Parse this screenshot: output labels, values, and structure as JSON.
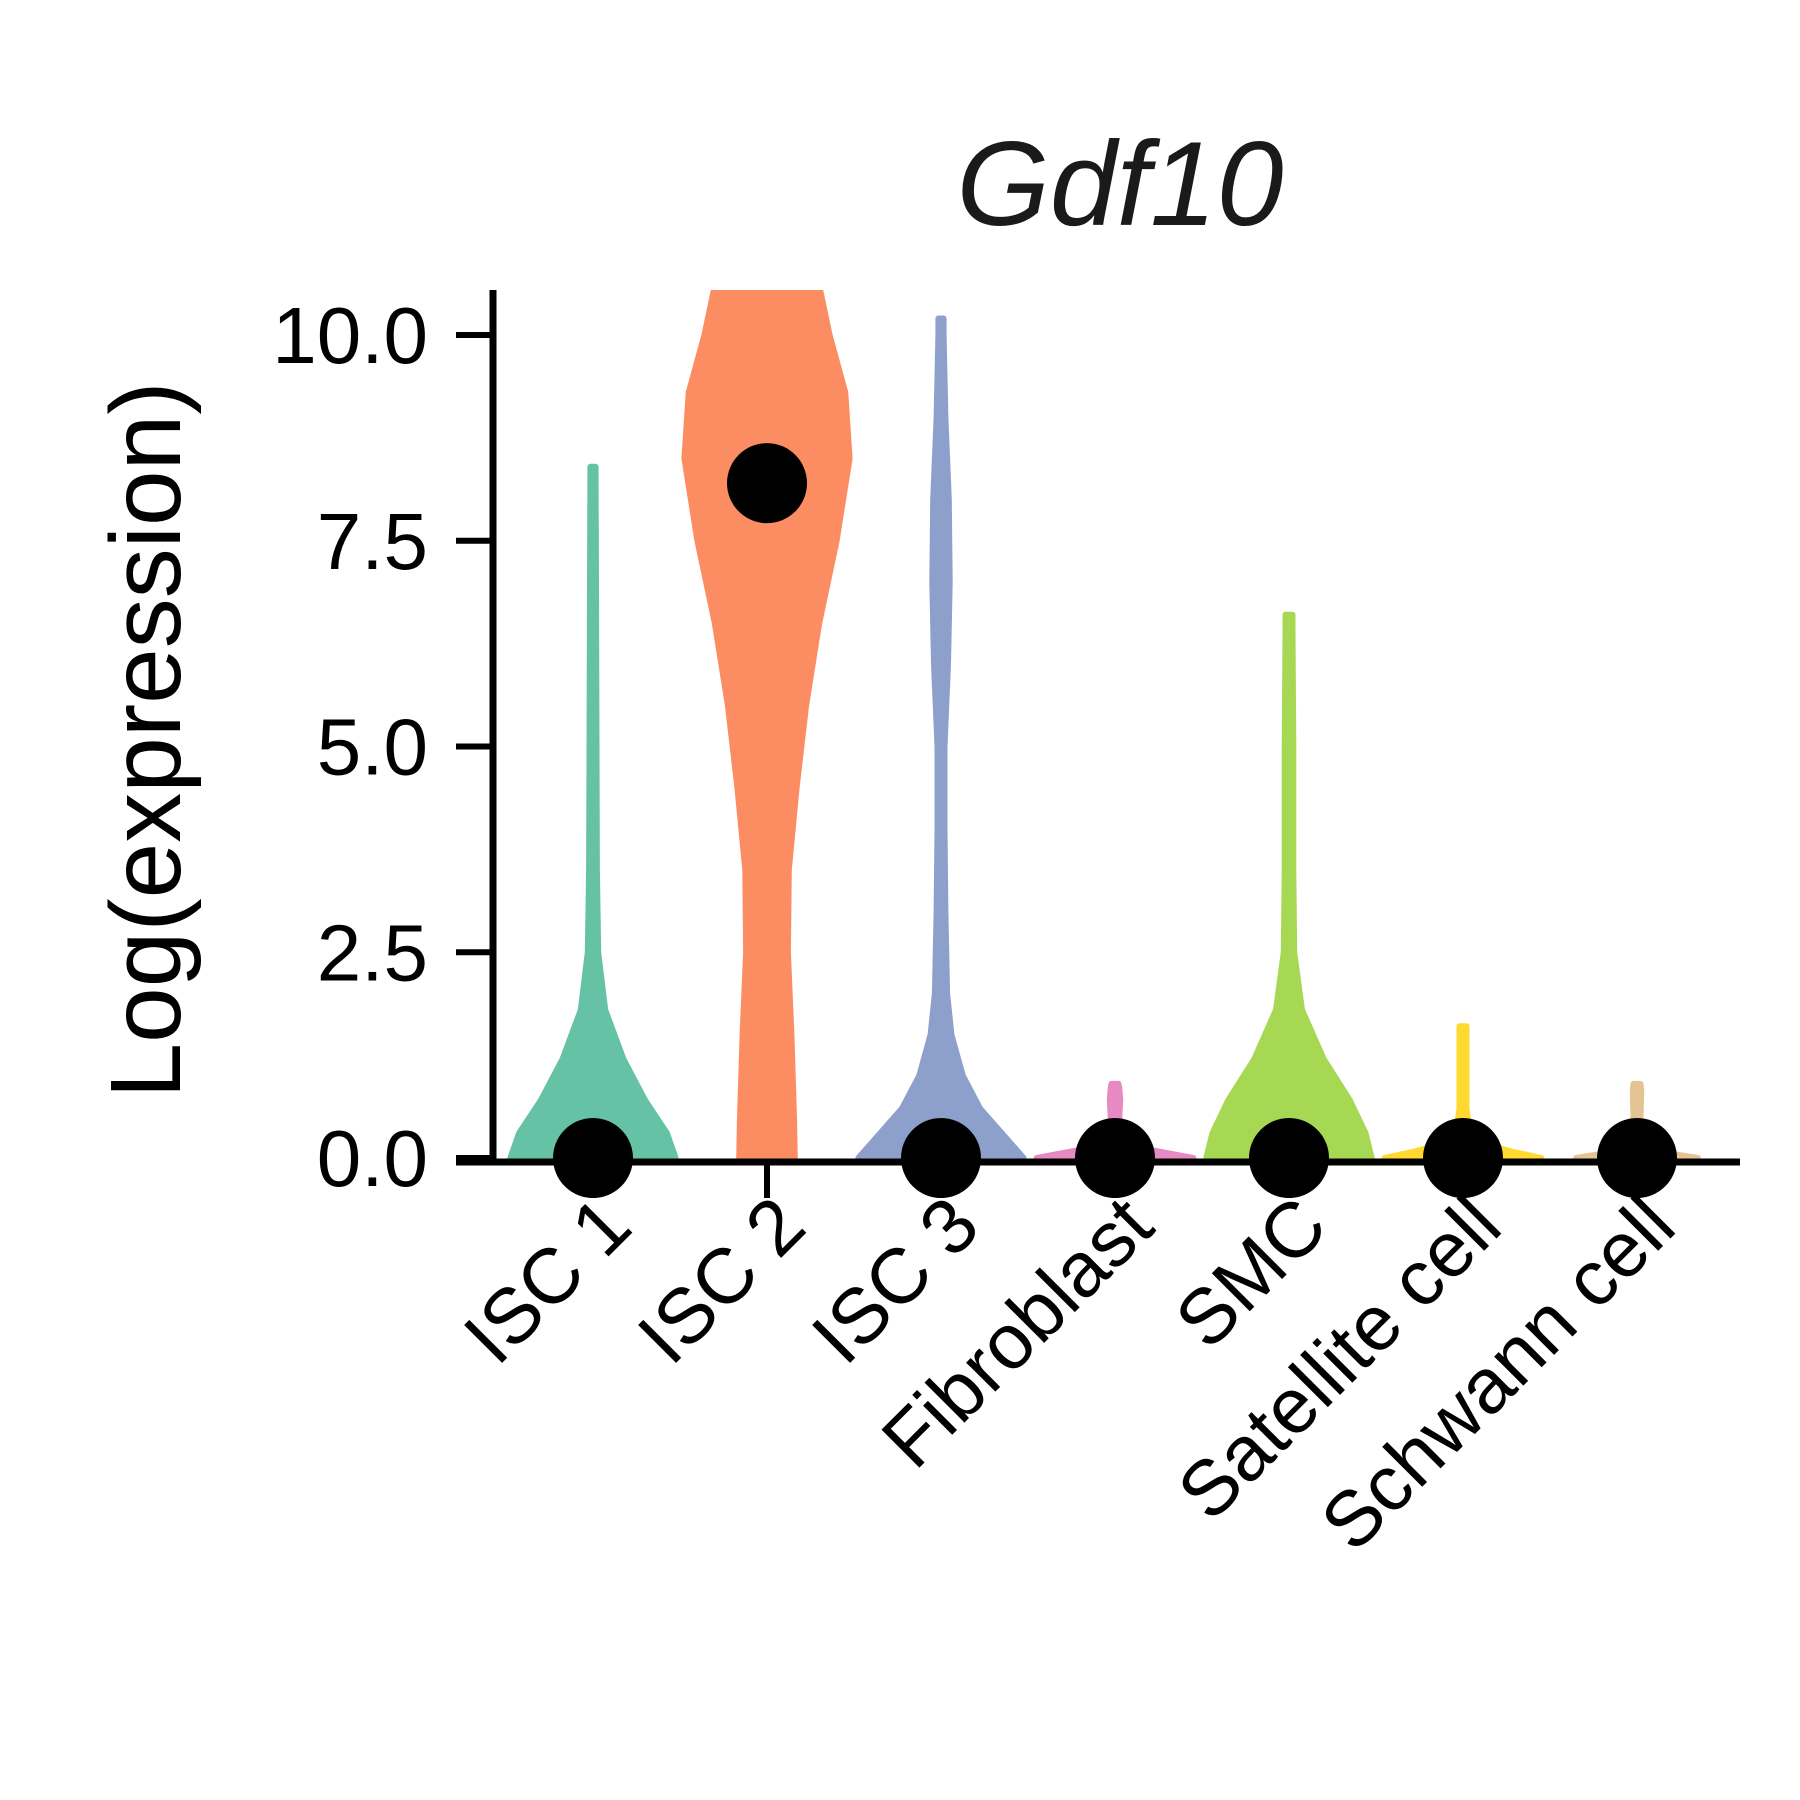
{
  "chart_data": {
    "type": "violin",
    "title": "Gdf10",
    "ylabel": "Log(expression)",
    "xlabel": "",
    "ylim": [
      0,
      10.6
    ],
    "yticks": [
      0.0,
      2.5,
      5.0,
      7.5,
      10.0
    ],
    "ytick_labels": [
      "0.0",
      "2.5",
      "5.0",
      "7.5",
      "10.0"
    ],
    "legend": "none",
    "grid": false,
    "categories": [
      "ISC 1",
      "ISC 2",
      "ISC 3",
      "Fibroblast",
      "SMC",
      "Satellite cell",
      "Schwann cell"
    ],
    "colors": [
      "#66C2A5",
      "#FC8D62",
      "#8DA0CB",
      "#E78AC3",
      "#A6D854",
      "#FFD92F",
      "#E5C494"
    ],
    "medians": [
      0.0,
      8.2,
      0.0,
      0.0,
      0.0,
      0.0,
      0.0
    ],
    "max_values": [
      8.4,
      10.6,
      10.2,
      0.9,
      6.6,
      1.6,
      0.9
    ],
    "violins": [
      {
        "name": "ISC 1",
        "profile": [
          [
            0,
            0.95
          ],
          [
            0.3,
            0.85
          ],
          [
            0.7,
            0.6
          ],
          [
            1.2,
            0.35
          ],
          [
            1.8,
            0.14
          ],
          [
            2.5,
            0.06
          ],
          [
            3.5,
            0.045
          ],
          [
            5,
            0.04
          ],
          [
            7,
            0.035
          ],
          [
            8.3,
            0.03
          ],
          [
            8.4,
            0.03
          ]
        ]
      },
      {
        "name": "ISC 2",
        "profile": [
          [
            0,
            0.32
          ],
          [
            0.5,
            0.31
          ],
          [
            1.5,
            0.28
          ],
          [
            2.5,
            0.24
          ],
          [
            3.5,
            0.25
          ],
          [
            4.5,
            0.34
          ],
          [
            5.5,
            0.45
          ],
          [
            6.5,
            0.6
          ],
          [
            7.5,
            0.8
          ],
          [
            8.5,
            0.95
          ],
          [
            9.3,
            0.9
          ],
          [
            10.0,
            0.72
          ],
          [
            10.6,
            0.6
          ]
        ]
      },
      {
        "name": "ISC 3",
        "profile": [
          [
            0,
            0.95
          ],
          [
            0.3,
            0.7
          ],
          [
            0.6,
            0.45
          ],
          [
            1.0,
            0.25
          ],
          [
            1.5,
            0.12
          ],
          [
            2.0,
            0.07
          ],
          [
            3,
            0.05
          ],
          [
            4,
            0.04
          ],
          [
            5,
            0.04
          ],
          [
            6,
            0.08
          ],
          [
            7,
            0.1
          ],
          [
            8,
            0.09
          ],
          [
            9,
            0.05
          ],
          [
            10,
            0.03
          ],
          [
            10.2,
            0.03
          ]
        ]
      },
      {
        "name": "Fibroblast",
        "profile": [
          [
            0,
            0.9
          ],
          [
            0.08,
            0.5
          ],
          [
            0.15,
            0.15
          ],
          [
            0.3,
            0.05
          ],
          [
            0.5,
            0.05
          ],
          [
            0.7,
            0.06
          ],
          [
            0.85,
            0.05
          ],
          [
            0.9,
            0.04
          ]
        ]
      },
      {
        "name": "SMC",
        "profile": [
          [
            0,
            0.95
          ],
          [
            0.3,
            0.88
          ],
          [
            0.7,
            0.7
          ],
          [
            1.2,
            0.4
          ],
          [
            1.8,
            0.15
          ],
          [
            2.5,
            0.06
          ],
          [
            3.5,
            0.05
          ],
          [
            5,
            0.05
          ],
          [
            6.4,
            0.04
          ],
          [
            6.6,
            0.04
          ]
        ]
      },
      {
        "name": "Satellite cell",
        "profile": [
          [
            0,
            0.9
          ],
          [
            0.08,
            0.55
          ],
          [
            0.18,
            0.22
          ],
          [
            0.3,
            0.08
          ],
          [
            0.6,
            0.04
          ],
          [
            1.0,
            0.04
          ],
          [
            1.4,
            0.04
          ],
          [
            1.6,
            0.04
          ]
        ]
      },
      {
        "name": "Schwann cell",
        "profile": [
          [
            0,
            0.7
          ],
          [
            0.06,
            0.35
          ],
          [
            0.12,
            0.1
          ],
          [
            0.25,
            0.04
          ],
          [
            0.5,
            0.04
          ],
          [
            0.8,
            0.05
          ],
          [
            0.9,
            0.04
          ]
        ]
      }
    ]
  }
}
